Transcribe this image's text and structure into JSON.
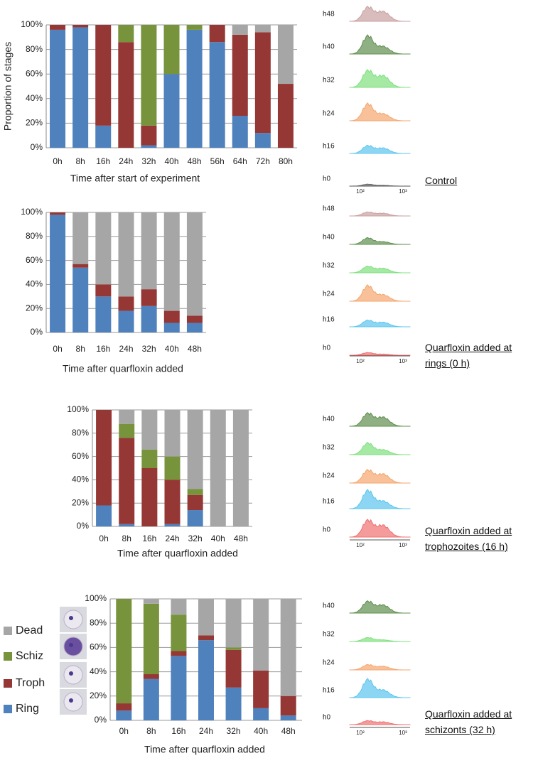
{
  "chart_data": [
    {
      "type": "bar",
      "stacked": true,
      "grid": true,
      "ylabel": "Proportion of stages",
      "xlabel": "Time after start of experiment",
      "annotation": "Control",
      "categories": [
        "0h",
        "8h",
        "16h",
        "24h",
        "32h",
        "40h",
        "48h",
        "56h",
        "64h",
        "72h",
        "80h"
      ],
      "series": [
        {
          "color": "#4f81bd",
          "values": [
            96,
            98,
            18,
            0,
            2,
            60,
            96,
            86,
            26,
            12,
            0
          ]
        },
        {
          "color": "#953735",
          "values": [
            4,
            2,
            82,
            86,
            16,
            0,
            0,
            14,
            66,
            82,
            52
          ]
        },
        {
          "color": "#77933c",
          "values": [
            0,
            0,
            0,
            14,
            82,
            40,
            4,
            0,
            0,
            0,
            0
          ]
        },
        {
          "color": "#a6a6a6",
          "values": [
            0,
            0,
            0,
            0,
            0,
            0,
            0,
            0,
            8,
            6,
            48
          ]
        }
      ],
      "ylim": [
        0,
        100
      ],
      "yticks": [
        {
          "value": 0,
          "label": "0%"
        },
        {
          "value": 20,
          "label": "20%"
        },
        {
          "value": 40,
          "label": "40%"
        },
        {
          "value": 60,
          "label": "60%"
        },
        {
          "value": 80,
          "label": "80%"
        },
        {
          "value": 100,
          "label": "100%"
        }
      ],
      "histogram_labels": [
        "h48",
        "h40",
        "h32",
        "h24",
        "h16",
        "h0"
      ],
      "histogram_colors": [
        "#c9a0a0",
        "#5f8f4e",
        "#7fe07f",
        "#f5a66e",
        "#5bc5ef",
        "#666666"
      ],
      "histogram_xtick_labels": [
        "10²",
        "10³"
      ]
    },
    {
      "type": "bar",
      "stacked": true,
      "grid": true,
      "xlabel": "Time after quarfloxin added",
      "annotation": "Quarfloxin added at rings (0 h)",
      "categories": [
        "0h",
        "8h",
        "16h",
        "24h",
        "32h",
        "40h",
        "48h"
      ],
      "series": [
        {
          "color": "#4f81bd",
          "values": [
            98,
            54,
            30,
            18,
            22,
            8,
            8
          ]
        },
        {
          "color": "#953735",
          "values": [
            2,
            3,
            10,
            12,
            14,
            10,
            6
          ]
        },
        {
          "color": "#77933c",
          "values": [
            0,
            0,
            0,
            0,
            0,
            0,
            0
          ]
        },
        {
          "color": "#a6a6a6",
          "values": [
            0,
            43,
            60,
            70,
            64,
            82,
            86
          ]
        }
      ],
      "ylim": [
        0,
        100
      ],
      "yticks": [
        {
          "value": 0,
          "label": "0%"
        },
        {
          "value": 20,
          "label": "20%"
        },
        {
          "value": 40,
          "label": "40%"
        },
        {
          "value": 60,
          "label": "60%"
        },
        {
          "value": 80,
          "label": "80%"
        },
        {
          "value": 100,
          "label": "100%"
        }
      ],
      "histogram_labels": [
        "h48",
        "h40",
        "h32",
        "h24",
        "h16",
        "h0"
      ],
      "histogram_colors": [
        "#c9a0a0",
        "#5f8f4e",
        "#7fe07f",
        "#f5a66e",
        "#5bc5ef",
        "#ef7070"
      ],
      "histogram_xtick_labels": [
        "10²",
        "10³"
      ]
    },
    {
      "type": "bar",
      "stacked": true,
      "grid": true,
      "xlabel": "Time after quarfloxin added",
      "annotation": "Quarfloxin added at trophozoites (16 h)",
      "categories": [
        "0h",
        "8h",
        "16h",
        "24h",
        "32h",
        "40h",
        "48h"
      ],
      "series": [
        {
          "color": "#4f81bd",
          "values": [
            18,
            2,
            0,
            2,
            14,
            0,
            0
          ]
        },
        {
          "color": "#953735",
          "values": [
            82,
            74,
            50,
            38,
            13,
            0,
            0
          ]
        },
        {
          "color": "#77933c",
          "values": [
            0,
            12,
            16,
            20,
            5,
            0,
            0
          ]
        },
        {
          "color": "#a6a6a6",
          "values": [
            0,
            12,
            34,
            40,
            68,
            100,
            100
          ]
        }
      ],
      "ylim": [
        0,
        100
      ],
      "yticks": [
        {
          "value": 0,
          "label": "0%"
        },
        {
          "value": 20,
          "label": "20%"
        },
        {
          "value": 40,
          "label": "40%"
        },
        {
          "value": 60,
          "label": "60%"
        },
        {
          "value": 80,
          "label": "80%"
        },
        {
          "value": 100,
          "label": "100%"
        }
      ],
      "histogram_labels": [
        "h40",
        "h32",
        "h24",
        "h16",
        "h0"
      ],
      "histogram_colors": [
        "#5f8f4e",
        "#7fe07f",
        "#f5a66e",
        "#5bc5ef",
        "#ef7070"
      ],
      "histogram_xtick_labels": [
        "10²",
        "10³"
      ]
    },
    {
      "type": "bar",
      "stacked": true,
      "grid": true,
      "legend": "left",
      "xlabel": "Time after quarfloxin added",
      "annotation": "Quarfloxin added at schizonts (32 h)",
      "categories": [
        "0h",
        "8h",
        "16h",
        "24h",
        "32h",
        "40h",
        "48h"
      ],
      "series": [
        {
          "name": "Ring",
          "color": "#4f81bd",
          "values": [
            8,
            34,
            53,
            66,
            27,
            10,
            4
          ]
        },
        {
          "name": "Troph",
          "color": "#953735",
          "values": [
            6,
            4,
            4,
            4,
            31,
            31,
            16
          ]
        },
        {
          "name": "Schiz",
          "color": "#77933c",
          "values": [
            86,
            58,
            30,
            0,
            2,
            0,
            0
          ]
        },
        {
          "name": "Dead",
          "color": "#a6a6a6",
          "values": [
            0,
            4,
            13,
            30,
            40,
            59,
            80
          ]
        }
      ],
      "ylim": [
        0,
        100
      ],
      "yticks": [
        {
          "value": 0,
          "label": "0%"
        },
        {
          "value": 20,
          "label": "20%"
        },
        {
          "value": 40,
          "label": "40%"
        },
        {
          "value": 60,
          "label": "60%"
        },
        {
          "value": 80,
          "label": "80%"
        },
        {
          "value": 100,
          "label": "100%"
        }
      ],
      "histogram_labels": [
        "h40",
        "h32",
        "h24",
        "h16",
        "h0"
      ],
      "histogram_colors": [
        "#5f8f4e",
        "#7fe07f",
        "#f5a66e",
        "#5bc5ef",
        "#ef7070"
      ],
      "histogram_xtick_labels": [
        "10²",
        "10³"
      ]
    }
  ]
}
